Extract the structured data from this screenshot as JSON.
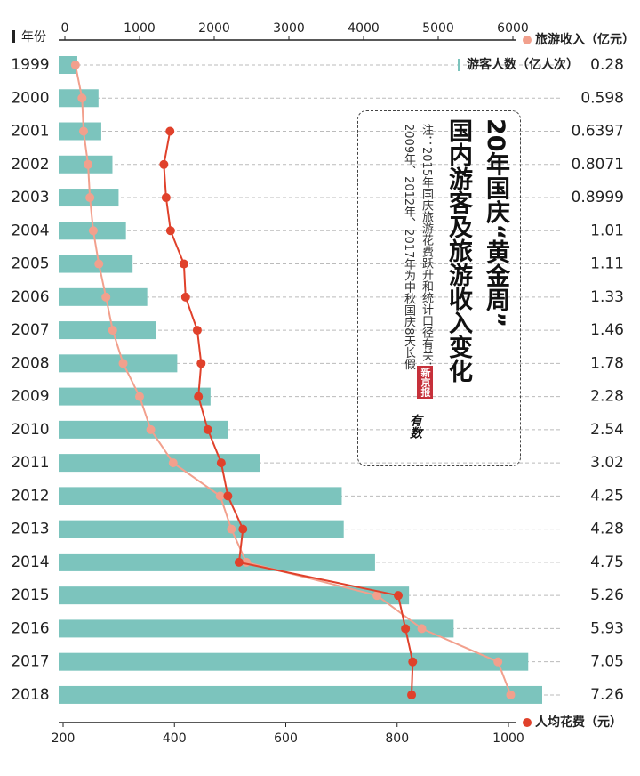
{
  "chart_data": {
    "type": "bar",
    "title": "20年国庆“黄金周”",
    "subtitle": "国内游客及旅游收入变化",
    "note": "注：2015年国庆旅游花费跃升和统计口径有关；2009年、2012年、2017年为中秋国庆8天长假",
    "source": [
      "新京报",
      "有数"
    ],
    "y_label": "年份",
    "categories": [
      "1999",
      "2000",
      "2001",
      "2002",
      "2003",
      "2004",
      "2005",
      "2006",
      "2007",
      "2008",
      "2009",
      "2010",
      "2011",
      "2012",
      "2013",
      "2014",
      "2015",
      "2016",
      "2017",
      "2018"
    ],
    "series": [
      {
        "name": "游客人数（亿人次）",
        "type": "bar",
        "color": "#7cc4bd",
        "values": [
          0.28,
          0.598,
          0.6397,
          0.8071,
          0.8999,
          1.01,
          1.11,
          1.33,
          1.46,
          1.78,
          2.28,
          2.54,
          3.02,
          4.25,
          4.28,
          4.75,
          5.26,
          5.93,
          7.05,
          7.26
        ]
      },
      {
        "name": "旅游收入（亿元）",
        "type": "line",
        "axis": "x2",
        "color": "#f2a08d",
        "values": [
          141,
          230,
          250,
          310,
          335,
          380,
          455,
          550,
          640,
          780,
          1000,
          1150,
          1450,
          2080,
          2230,
          2430,
          4180,
          4780,
          5800,
          5970
        ]
      },
      {
        "name": "人均花费（元）",
        "type": "line",
        "axis": "x",
        "color": "#e0412b",
        "values": [
          null,
          null,
          392,
          381,
          385,
          393,
          417,
          420,
          441,
          448,
          443,
          460,
          484,
          496,
          523,
          516,
          802,
          815,
          828,
          826
        ]
      }
    ],
    "xlim": [
      200,
      1000
    ],
    "xticks": [
      200,
      400,
      600,
      800,
      1000
    ],
    "x2lim": [
      0,
      6000
    ],
    "x2ticks": [
      0,
      1000,
      2000,
      3000,
      4000,
      5000,
      6000
    ]
  }
}
